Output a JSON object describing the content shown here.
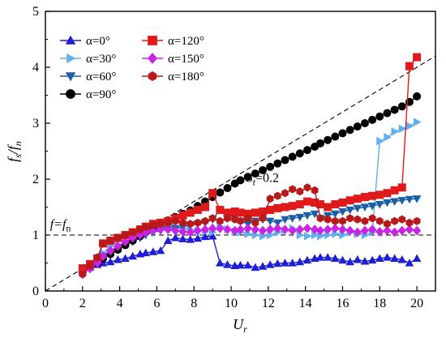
{
  "chart_data": {
    "type": "line",
    "xlabel": "U",
    "xlabel_sub": "r",
    "ylabel_parts": {
      "a": "f",
      "a_sub": "s",
      "sep": "/",
      "b": "f",
      "b_sub": "n"
    },
    "xlim": [
      0,
      21
    ],
    "ylim": [
      0,
      5
    ],
    "xticks": [
      "0",
      "2",
      "4",
      "6",
      "8",
      "10",
      "12",
      "14",
      "16",
      "18",
      "20"
    ],
    "yticks": [
      "0",
      "1",
      "2",
      "3",
      "4",
      "5"
    ],
    "grid": false,
    "legend_placement": "top-left",
    "reference_lines": [
      {
        "kind": "strouhal",
        "slope": 0.2,
        "label_main": "S",
        "label_sub": "t",
        "label_rest": "=0.2",
        "label_at": [
          10.2,
          1.95
        ]
      },
      {
        "kind": "horizontal",
        "y": 1.0,
        "label": "f=f",
        "label_sub": "n",
        "label_at": [
          0.25,
          1.12
        ]
      }
    ],
    "x": [
      2.0,
      2.4,
      2.8,
      3.1,
      3.5,
      3.9,
      4.3,
      4.7,
      5.1,
      5.4,
      5.8,
      6.2,
      6.6,
      7.0,
      7.4,
      7.8,
      8.2,
      8.6,
      9.0,
      9.4,
      9.8,
      10.2,
      10.5,
      10.9,
      11.3,
      11.7,
      12.1,
      12.5,
      12.9,
      13.3,
      13.7,
      14.1,
      14.5,
      14.8,
      15.2,
      15.6,
      16.0,
      16.4,
      16.8,
      17.2,
      17.6,
      18.0,
      18.4,
      18.8,
      19.2,
      19.6,
      20.0
    ],
    "series": [
      {
        "name": "α=0°",
        "color": "#1f1fd6",
        "marker": "triangle-up",
        "values": [
          0.38,
          0.42,
          0.47,
          0.5,
          0.52,
          0.56,
          0.58,
          0.62,
          0.66,
          0.68,
          0.7,
          0.72,
          0.9,
          0.95,
          0.93,
          0.92,
          0.94,
          0.97,
          0.98,
          0.5,
          0.47,
          0.45,
          0.46,
          0.46,
          0.42,
          0.44,
          0.47,
          0.49,
          0.5,
          0.5,
          0.52,
          0.55,
          0.58,
          0.6,
          0.6,
          0.58,
          0.55,
          0.52,
          0.56,
          0.53,
          0.55,
          0.58,
          0.6,
          0.58,
          0.56,
          0.5,
          0.58
        ]
      },
      {
        "name": "α=30°",
        "color": "#5fb0ec",
        "marker": "triangle-right",
        "values": [
          0.4,
          0.45,
          0.55,
          0.68,
          0.8,
          0.9,
          0.98,
          1.02,
          1.05,
          1.08,
          1.1,
          1.12,
          1.15,
          1.13,
          1.12,
          1.1,
          1.08,
          1.06,
          1.05,
          1.15,
          1.1,
          1.06,
          1.05,
          1.02,
          1.0,
          0.98,
          1.0,
          1.05,
          1.08,
          1.12,
          1.0,
          0.98,
          1.0,
          0.98,
          1.0,
          1.02,
          1.0,
          1.05,
          1.02,
          1.0,
          1.05,
          2.68,
          2.75,
          2.85,
          2.9,
          2.95,
          3.02
        ]
      },
      {
        "name": "α=60°",
        "color": "#1a5fa8",
        "marker": "triangle-down",
        "values": [
          0.42,
          0.48,
          0.55,
          0.62,
          0.68,
          0.75,
          0.82,
          0.88,
          0.95,
          1.0,
          1.05,
          1.08,
          1.1,
          1.12,
          1.15,
          1.18,
          1.2,
          1.22,
          1.28,
          1.45,
          1.4,
          1.3,
          1.25,
          1.2,
          1.25,
          1.28,
          1.25,
          1.22,
          1.28,
          1.3,
          1.32,
          1.35,
          1.38,
          1.3,
          1.35,
          1.38,
          1.42,
          1.45,
          1.48,
          1.5,
          1.52,
          1.55,
          1.58,
          1.6,
          1.62,
          1.64,
          1.65
        ]
      },
      {
        "name": "α=90°",
        "color": "#000000",
        "marker": "circle",
        "values": [
          0.35,
          0.42,
          0.5,
          0.58,
          0.66,
          0.74,
          0.82,
          0.9,
          0.98,
          1.06,
          1.14,
          1.2,
          1.26,
          1.32,
          1.38,
          1.44,
          1.52,
          1.6,
          1.68,
          1.76,
          1.84,
          1.92,
          1.98,
          2.04,
          2.1,
          2.16,
          2.22,
          2.28,
          2.34,
          2.4,
          2.46,
          2.52,
          2.58,
          2.64,
          2.7,
          2.76,
          2.82,
          2.88,
          2.94,
          3.0,
          3.06,
          3.12,
          3.18,
          3.24,
          3.3,
          3.38,
          3.48
        ]
      },
      {
        "name": "α=120°",
        "color": "#e01a1a",
        "marker": "square",
        "values": [
          0.4,
          0.48,
          0.58,
          0.85,
          0.9,
          0.95,
          1.0,
          1.05,
          1.1,
          1.15,
          1.2,
          1.22,
          1.25,
          1.3,
          1.35,
          1.4,
          1.45,
          1.5,
          1.75,
          1.45,
          1.4,
          1.42,
          1.4,
          1.38,
          1.4,
          1.42,
          1.45,
          1.48,
          1.5,
          1.52,
          1.55,
          1.6,
          1.58,
          1.55,
          1.5,
          1.55,
          1.58,
          1.62,
          1.65,
          1.68,
          1.7,
          1.72,
          1.75,
          1.8,
          1.85,
          4.02,
          4.18
        ]
      },
      {
        "name": "α=150°",
        "color": "#cc22e6",
        "marker": "diamond",
        "values": [
          0.3,
          0.4,
          0.5,
          0.62,
          0.72,
          0.8,
          0.88,
          0.95,
          1.0,
          1.05,
          1.08,
          1.1,
          1.1,
          1.08,
          1.06,
          1.05,
          1.08,
          1.1,
          1.12,
          1.12,
          1.1,
          1.08,
          1.1,
          1.12,
          1.1,
          1.08,
          1.1,
          1.12,
          1.1,
          1.08,
          1.1,
          1.12,
          1.1,
          1.08,
          1.1,
          1.12,
          1.1,
          1.08,
          1.05,
          1.08,
          1.1,
          1.06,
          1.08,
          1.05,
          1.08,
          1.1,
          1.08
        ]
      },
      {
        "name": "α=180°",
        "color": "#b81a1a",
        "marker": "hexagon",
        "values": [
          0.3,
          0.45,
          0.6,
          0.85,
          0.9,
          0.95,
          1.0,
          1.05,
          1.1,
          1.15,
          1.18,
          1.2,
          1.22,
          1.25,
          1.22,
          1.2,
          1.22,
          1.25,
          1.3,
          1.25,
          1.3,
          1.28,
          1.25,
          1.3,
          1.22,
          1.3,
          1.65,
          1.7,
          1.75,
          1.82,
          1.78,
          1.85,
          1.8,
          1.3,
          1.28,
          1.25,
          1.25,
          1.3,
          1.28,
          1.25,
          1.3,
          1.25,
          1.2,
          1.25,
          1.28,
          1.22,
          1.25
        ]
      }
    ]
  }
}
